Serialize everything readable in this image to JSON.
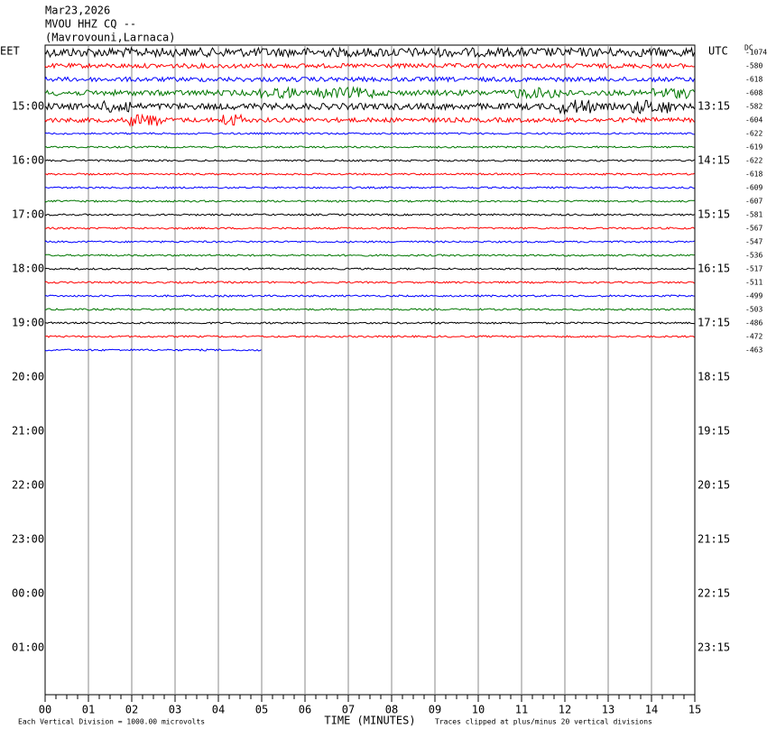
{
  "header": {
    "date": "Mar23,2026",
    "station": "MVOU HHZ CQ --",
    "location": "(Mavrovouni,Larnaca)",
    "dc": "DC"
  },
  "left_axis": {
    "label": "EET",
    "hours": [
      "15:00",
      "16:00",
      "17:00",
      "18:00",
      "19:00",
      "20:00",
      "21:00",
      "22:00",
      "23:00",
      "00:00",
      "01:00"
    ]
  },
  "right_axis": {
    "label": "UTC",
    "hours": [
      "13:15",
      "14:15",
      "15:15",
      "16:15",
      "17:15",
      "18:15",
      "19:15",
      "20:15",
      "21:15",
      "22:15",
      "23:15"
    ]
  },
  "traces": {
    "offsets": [
      -1074,
      -580,
      -618,
      -608,
      -582,
      -604,
      -622,
      -619,
      -622,
      -618,
      -609,
      -607,
      -581,
      -567,
      -547,
      -536,
      -517,
      -511,
      -499,
      -503,
      -486,
      -472,
      -463
    ],
    "colors": [
      "#000000",
      "#ff0000",
      "#0000ff",
      "#007700"
    ]
  },
  "x_axis": {
    "ticks": [
      "00",
      "01",
      "02",
      "03",
      "04",
      "05",
      "06",
      "07",
      "08",
      "09",
      "10",
      "11",
      "12",
      "13",
      "14",
      "15"
    ],
    "title": "TIME (MINUTES)"
  },
  "footer": {
    "scale": "Each Vertical Division = 1000.00 microvolts",
    "clip": "Traces clipped at plus/minus 20 vertical divisions"
  }
}
